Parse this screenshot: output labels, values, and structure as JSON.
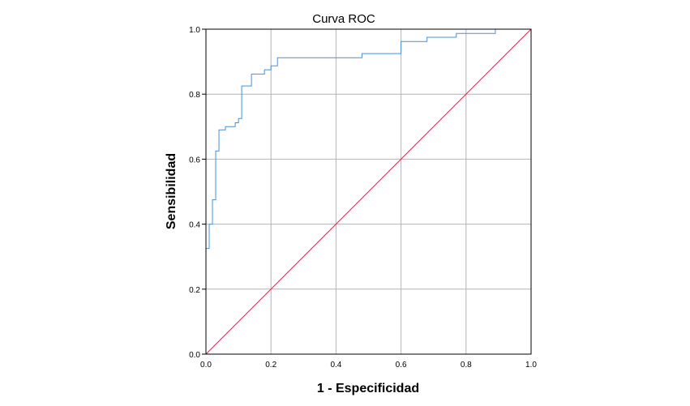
{
  "chart_data": {
    "type": "line",
    "title": "Curva ROC",
    "xlabel": "1 - Especificidad",
    "ylabel": "Sensibilidad",
    "xlim": [
      0,
      1
    ],
    "ylim": [
      0,
      1
    ],
    "x_ticks": [
      "0.0",
      "0.2",
      "0.4",
      "0.6",
      "0.8",
      "1.0"
    ],
    "y_ticks": [
      "0.0",
      "0.2",
      "0.4",
      "0.6",
      "0.8",
      "1.0"
    ],
    "grid": true,
    "legend": "none",
    "series": [
      {
        "color": "#4a90d9",
        "points": [
          [
            0.0,
            0.0
          ],
          [
            0.0,
            0.325
          ],
          [
            0.01,
            0.325
          ],
          [
            0.01,
            0.4
          ],
          [
            0.02,
            0.4
          ],
          [
            0.02,
            0.475
          ],
          [
            0.03,
            0.475
          ],
          [
            0.03,
            0.625
          ],
          [
            0.04,
            0.625
          ],
          [
            0.04,
            0.69
          ],
          [
            0.06,
            0.69
          ],
          [
            0.06,
            0.7
          ],
          [
            0.09,
            0.7
          ],
          [
            0.09,
            0.712
          ],
          [
            0.1,
            0.712
          ],
          [
            0.1,
            0.725
          ],
          [
            0.11,
            0.725
          ],
          [
            0.11,
            0.825
          ],
          [
            0.14,
            0.825
          ],
          [
            0.14,
            0.862
          ],
          [
            0.18,
            0.862
          ],
          [
            0.18,
            0.875
          ],
          [
            0.2,
            0.875
          ],
          [
            0.2,
            0.887
          ],
          [
            0.22,
            0.887
          ],
          [
            0.22,
            0.912
          ],
          [
            0.48,
            0.912
          ],
          [
            0.48,
            0.925
          ],
          [
            0.6,
            0.925
          ],
          [
            0.6,
            0.962
          ],
          [
            0.68,
            0.962
          ],
          [
            0.68,
            0.975
          ],
          [
            0.77,
            0.975
          ],
          [
            0.77,
            0.987
          ],
          [
            0.89,
            0.987
          ],
          [
            0.89,
            1.0
          ],
          [
            1.0,
            1.0
          ]
        ]
      },
      {
        "color": "#e0284f",
        "points": [
          [
            0,
            0
          ],
          [
            1,
            1
          ]
        ]
      }
    ]
  }
}
